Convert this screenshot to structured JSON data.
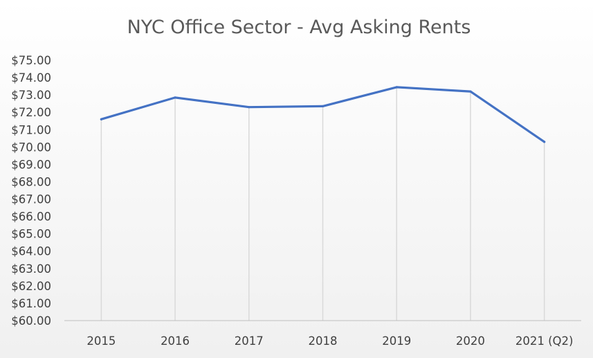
{
  "chart_data": {
    "type": "line",
    "title": "NYC Office Sector - Avg Asking Rents",
    "xlabel": "",
    "ylabel": "",
    "categories": [
      "2015",
      "2016",
      "2017",
      "2018",
      "2019",
      "2020",
      "2021 (Q2)"
    ],
    "series": [
      {
        "values": [
          71.6,
          72.85,
          72.3,
          72.35,
          73.45,
          73.2,
          70.3
        ]
      }
    ],
    "ylim": [
      60,
      75
    ],
    "yticks": [
      "$60.00",
      "$61.00",
      "$62.00",
      "$63.00",
      "$64.00",
      "$65.00",
      "$66.00",
      "$67.00",
      "$68.00",
      "$69.00",
      "$70.00",
      "$71.00",
      "$72.00",
      "$73.00",
      "$74.00",
      "$75.00"
    ],
    "grid": "vertical drop lines",
    "legend": "none",
    "colors": {
      "line": "#4472C4",
      "gridline": "#D9D9D9",
      "axis": "#BFBFBF",
      "text": "#404040",
      "title": "#595959"
    }
  }
}
